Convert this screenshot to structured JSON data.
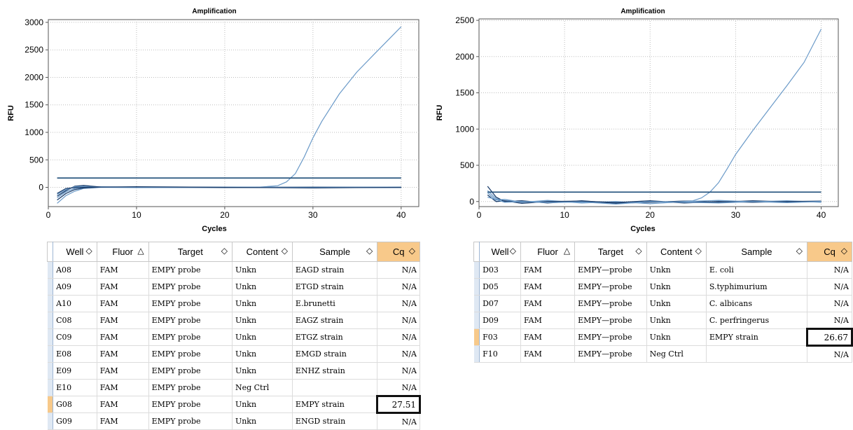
{
  "colors": {
    "curve": "#6b9ac8",
    "threshold": "#1f4e79",
    "baseline": "#1a3d6b",
    "grid": "#bdbdbd",
    "header_selected": "#f8c98a",
    "row_selected": "#f7c98a"
  },
  "chart_data": [
    {
      "type": "line",
      "title": "Amplification",
      "xlabel": "Cycles",
      "ylabel": "RFU",
      "xlim": [
        0,
        42
      ],
      "ylim": [
        -350,
        3050
      ],
      "xticks": [
        0,
        10,
        20,
        30,
        40
      ],
      "yticks": [
        0,
        500,
        1000,
        1500,
        2000,
        2500,
        3000
      ],
      "grid": true,
      "threshold": 170,
      "series": [
        {
          "values": [
            [
              1,
              -290
            ],
            [
              2,
              -150
            ],
            [
              3,
              -70
            ],
            [
              4,
              -20
            ],
            [
              6,
              0
            ],
            [
              10,
              5
            ],
            [
              20,
              5
            ],
            [
              24,
              5
            ],
            [
              26,
              30
            ],
            [
              27,
              100
            ],
            [
              28,
              250
            ],
            [
              29,
              550
            ],
            [
              30,
              900
            ],
            [
              31,
              1200
            ],
            [
              33,
              1700
            ],
            [
              35,
              2100
            ],
            [
              37,
              2430
            ],
            [
              40,
              2920
            ]
          ]
        },
        {
          "values": [
            [
              1,
              -230
            ],
            [
              2,
              -110
            ],
            [
              3,
              -40
            ],
            [
              4,
              -10
            ],
            [
              6,
              5
            ],
            [
              10,
              2
            ],
            [
              20,
              0
            ],
            [
              30,
              -5
            ],
            [
              40,
              0
            ]
          ]
        },
        {
          "values": [
            [
              1,
              -190
            ],
            [
              2,
              -80
            ],
            [
              3,
              -20
            ],
            [
              4,
              5
            ],
            [
              6,
              10
            ],
            [
              10,
              0
            ],
            [
              20,
              5
            ],
            [
              30,
              0
            ],
            [
              40,
              -5
            ]
          ]
        },
        {
          "values": [
            [
              1,
              -160
            ],
            [
              2,
              -60
            ],
            [
              3,
              20
            ],
            [
              4,
              35
            ],
            [
              6,
              5
            ],
            [
              10,
              5
            ],
            [
              20,
              -5
            ],
            [
              30,
              5
            ],
            [
              40,
              0
            ]
          ]
        },
        {
          "values": [
            [
              1,
              -130
            ],
            [
              2,
              -40
            ],
            [
              3,
              10
            ],
            [
              4,
              15
            ],
            [
              6,
              0
            ],
            [
              10,
              -5
            ],
            [
              20,
              0
            ],
            [
              30,
              0
            ],
            [
              40,
              5
            ]
          ]
        },
        {
          "values": [
            [
              1,
              -110
            ],
            [
              2,
              -20
            ],
            [
              3,
              -5
            ],
            [
              4,
              0
            ],
            [
              6,
              5
            ],
            [
              10,
              10
            ],
            [
              20,
              0
            ],
            [
              30,
              -10
            ],
            [
              40,
              0
            ]
          ]
        }
      ]
    },
    {
      "type": "line",
      "title": "Amplification",
      "xlabel": "Cycles",
      "ylabel": "RFU",
      "xlim": [
        0,
        42
      ],
      "ylim": [
        -70,
        2520
      ],
      "xticks": [
        0,
        10,
        20,
        30,
        40
      ],
      "yticks": [
        0,
        500,
        1000,
        1500,
        2000,
        2500
      ],
      "grid": true,
      "threshold": 130,
      "series": [
        {
          "values": [
            [
              1,
              150
            ],
            [
              2,
              40
            ],
            [
              3,
              10
            ],
            [
              6,
              0
            ],
            [
              10,
              0
            ],
            [
              20,
              -10
            ],
            [
              25,
              10
            ],
            [
              26,
              50
            ],
            [
              27,
              130
            ],
            [
              28,
              260
            ],
            [
              29,
              450
            ],
            [
              30,
              650
            ],
            [
              32,
              980
            ],
            [
              34,
              1290
            ],
            [
              36,
              1600
            ],
            [
              38,
              1920
            ],
            [
              40,
              2380
            ]
          ]
        },
        {
          "values": [
            [
              1,
              210
            ],
            [
              2,
              60
            ],
            [
              3,
              0
            ],
            [
              5,
              10
            ],
            [
              8,
              -20
            ],
            [
              12,
              10
            ],
            [
              16,
              -25
            ],
            [
              20,
              -10
            ],
            [
              24,
              5
            ],
            [
              28,
              -10
            ],
            [
              32,
              10
            ],
            [
              36,
              -5
            ],
            [
              40,
              0
            ]
          ]
        },
        {
          "values": [
            [
              1,
              120
            ],
            [
              2,
              20
            ],
            [
              3,
              30
            ],
            [
              5,
              -10
            ],
            [
              8,
              15
            ],
            [
              12,
              -20
            ],
            [
              16,
              0
            ],
            [
              20,
              -30
            ],
            [
              24,
              0
            ],
            [
              28,
              15
            ],
            [
              32,
              -5
            ],
            [
              36,
              10
            ],
            [
              40,
              -10
            ]
          ]
        },
        {
          "values": [
            [
              1,
              90
            ],
            [
              2,
              0
            ],
            [
              3,
              10
            ],
            [
              5,
              -25
            ],
            [
              8,
              0
            ],
            [
              12,
              5
            ],
            [
              16,
              -15
            ],
            [
              20,
              10
            ],
            [
              24,
              -20
            ],
            [
              28,
              0
            ],
            [
              32,
              -10
            ],
            [
              36,
              0
            ],
            [
              40,
              5
            ]
          ]
        },
        {
          "values": [
            [
              1,
              60
            ],
            [
              2,
              30
            ],
            [
              3,
              -10
            ],
            [
              5,
              0
            ],
            [
              8,
              -15
            ],
            [
              12,
              -5
            ],
            [
              16,
              -35
            ],
            [
              20,
              0
            ],
            [
              24,
              -10
            ],
            [
              28,
              -20
            ],
            [
              32,
              0
            ],
            [
              36,
              -15
            ],
            [
              40,
              0
            ]
          ]
        }
      ]
    }
  ],
  "tables": [
    {
      "headers": [
        {
          "label": "Well",
          "sort": "◇"
        },
        {
          "label": "Fluor",
          "sort": "△"
        },
        {
          "label": "Target",
          "sort": "◇"
        },
        {
          "label": "Content",
          "sort": "◇"
        },
        {
          "label": "Sample",
          "sort": "◇"
        },
        {
          "label": "Cq",
          "sort": "◇"
        }
      ],
      "rows": [
        [
          "A08",
          "FAM",
          "EMPY probe",
          "Unkn",
          "EAGD strain",
          "N/A"
        ],
        [
          "A09",
          "FAM",
          "EMPY probe",
          "Unkn",
          "ETGD strain",
          "N/A"
        ],
        [
          "A10",
          "FAM",
          "EMPY probe",
          "Unkn",
          "E.brunetti",
          "N/A"
        ],
        [
          "C08",
          "FAM",
          "EMPY probe",
          "Unkn",
          "EAGZ strain",
          "N/A"
        ],
        [
          "C09",
          "FAM",
          "EMPY probe",
          "Unkn",
          "ETGZ strain",
          "N/A"
        ],
        [
          "E08",
          "FAM",
          "EMPY probe",
          "Unkn",
          "EMGD strain",
          "N/A"
        ],
        [
          "E09",
          "FAM",
          "EMPY probe",
          "Unkn",
          "ENHZ strain",
          "N/A"
        ],
        [
          "E10",
          "FAM",
          "EMPY probe",
          "Neg Ctrl",
          "",
          "N/A"
        ],
        [
          "G08",
          "FAM",
          "EMPY probe",
          "Unkn",
          "EMPY strain",
          "27.51"
        ],
        [
          "G09",
          "FAM",
          "EMPY probe",
          "Unkn",
          "ENGD strain",
          "N/A"
        ]
      ]
    },
    {
      "headers": [
        {
          "label": "Well",
          "sort": "◇"
        },
        {
          "label": "Fluor",
          "sort": "△"
        },
        {
          "label": "Target",
          "sort": "◇"
        },
        {
          "label": "Content",
          "sort": "◇"
        },
        {
          "label": "Sample",
          "sort": "◇"
        },
        {
          "label": "Cq",
          "sort": "◇"
        }
      ],
      "rows": [
        [
          "D03",
          "FAM",
          "EMPY—probe",
          "Unkn",
          "E. coli",
          "N/A"
        ],
        [
          "D05",
          "FAM",
          "EMPY—probe",
          "Unkn",
          "S.typhimurium",
          "N/A"
        ],
        [
          "D07",
          "FAM",
          "EMPY—probe",
          "Unkn",
          "C. albicans",
          "N/A"
        ],
        [
          "D09",
          "FAM",
          "EMPY—probe",
          "Unkn",
          "C. perfringerus",
          "N/A"
        ],
        [
          "F03",
          "FAM",
          "EMPY—probe",
          "Unkn",
          "EMPY strain",
          "26.67"
        ],
        [
          "F10",
          "FAM",
          "EMPY—probe",
          "Neg Ctrl",
          "",
          "N/A"
        ]
      ]
    }
  ]
}
